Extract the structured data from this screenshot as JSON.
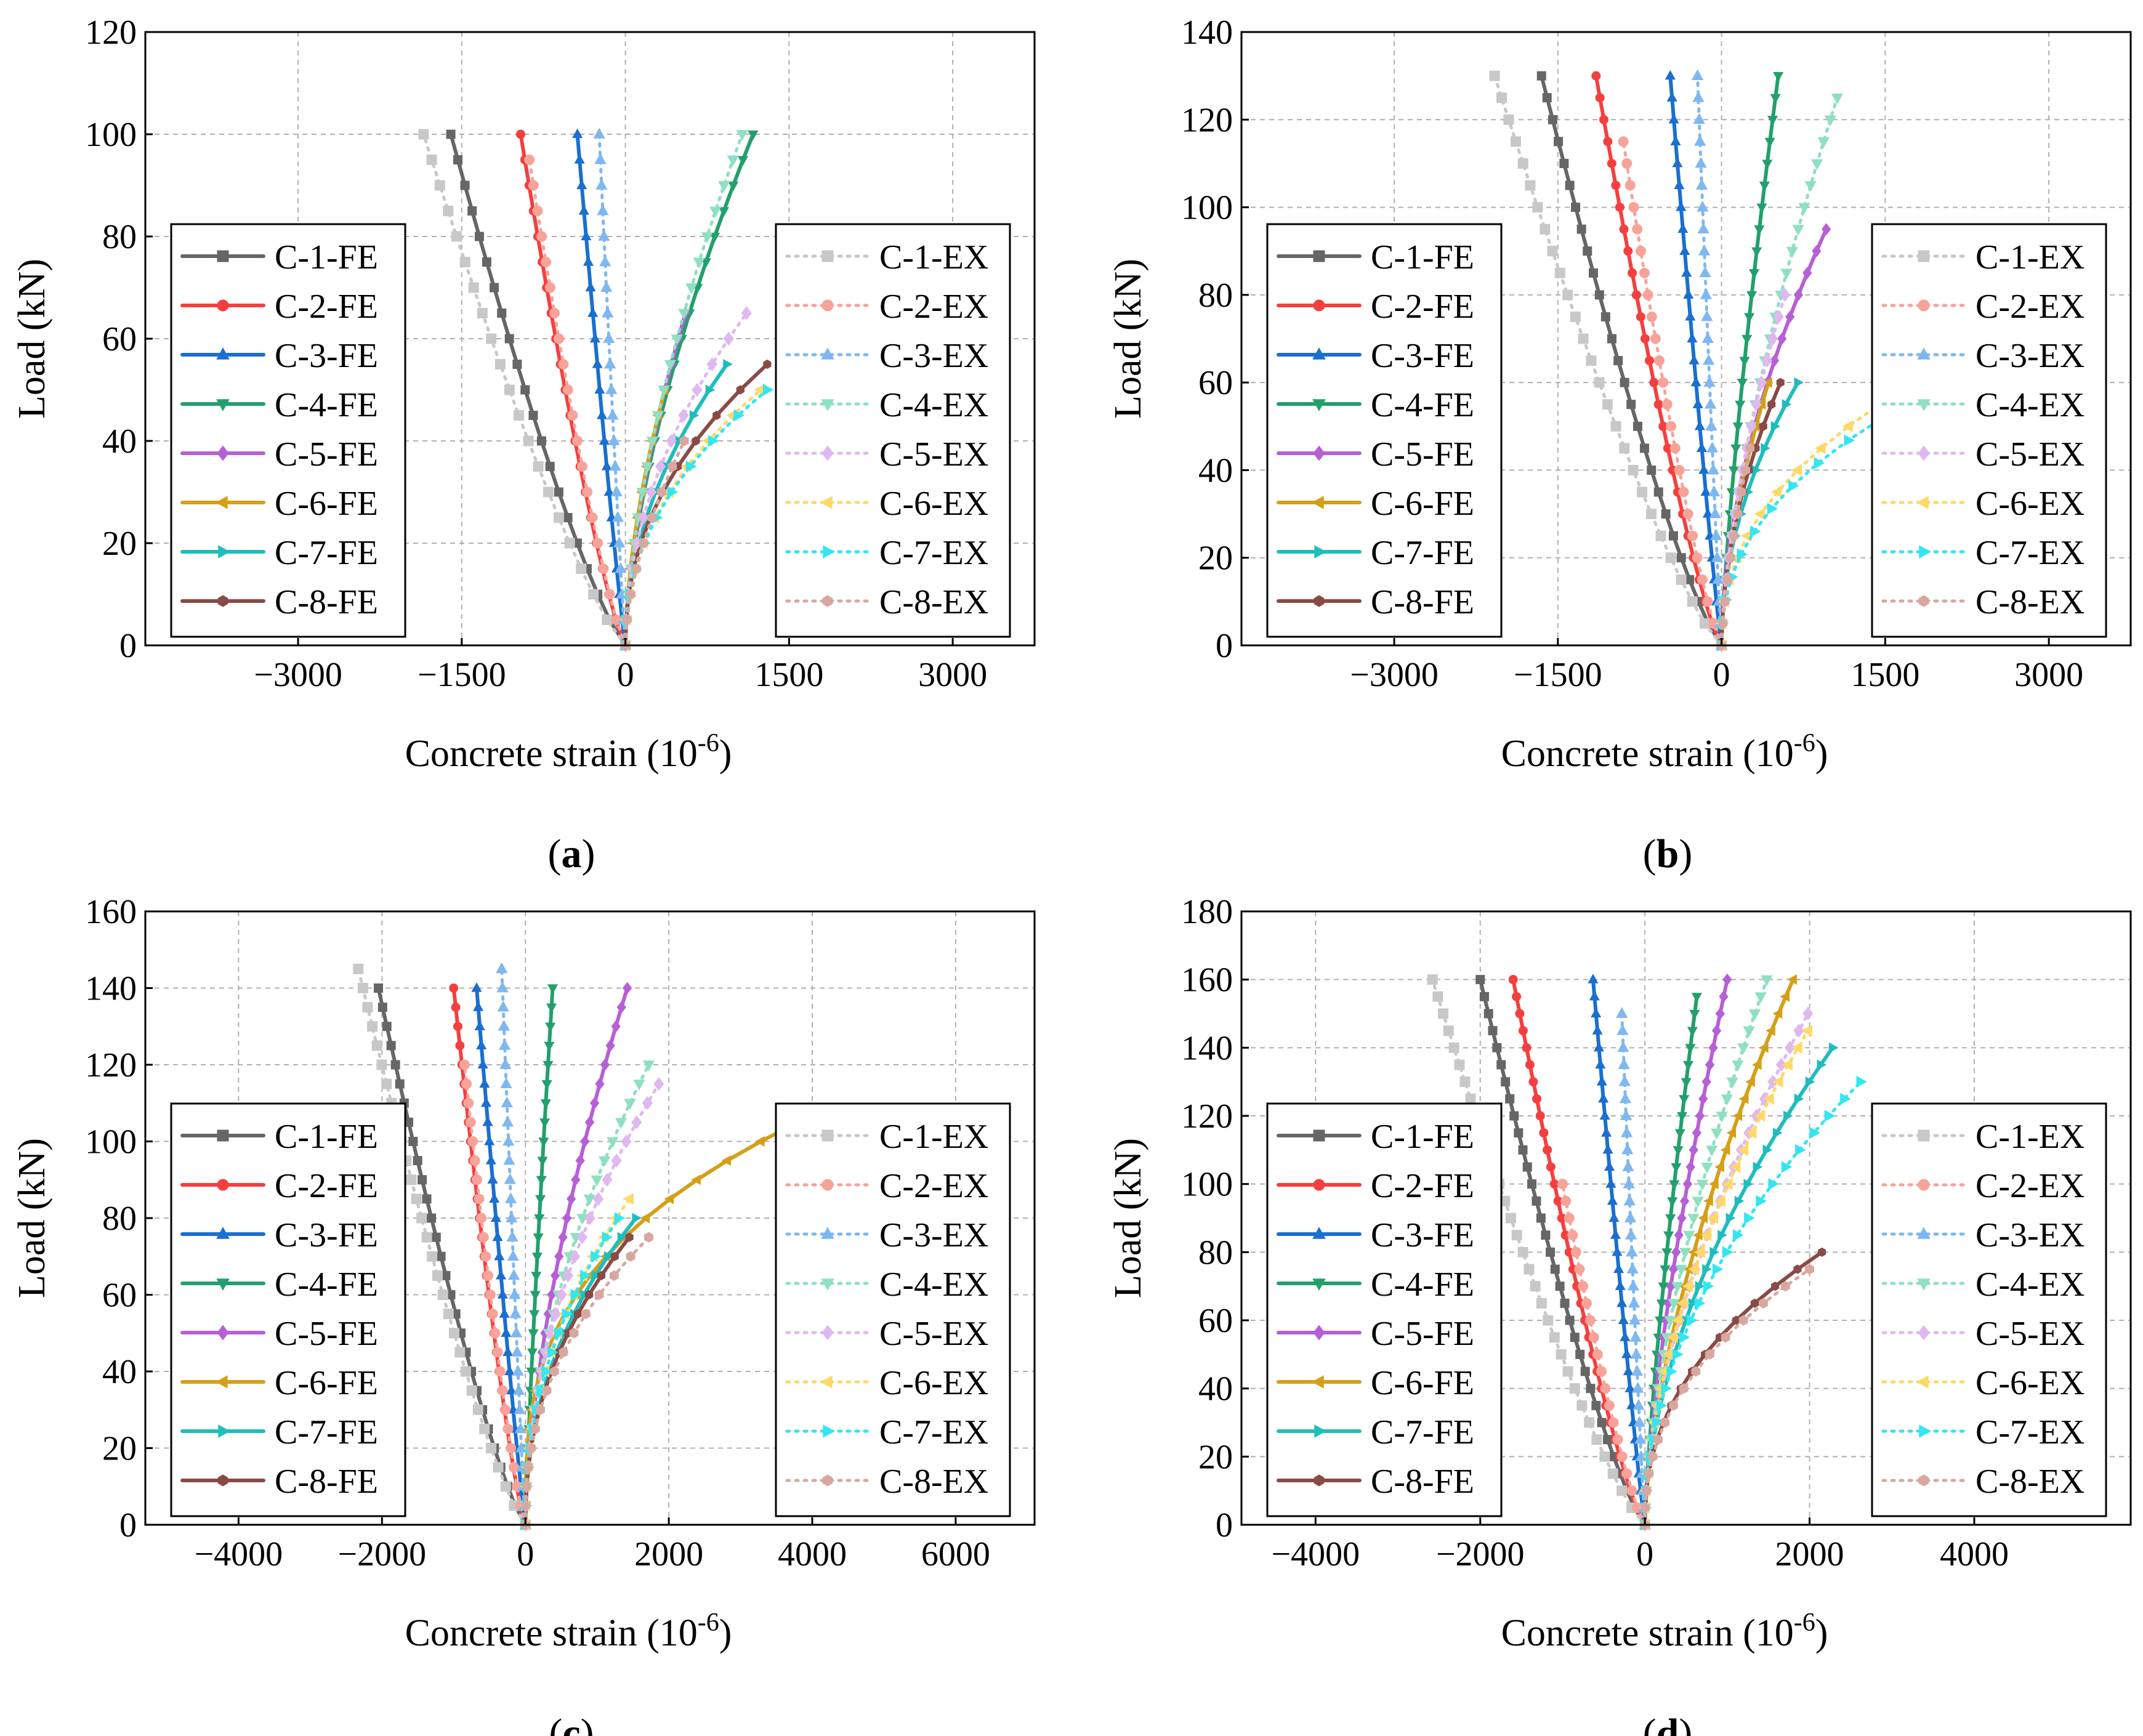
{
  "figure": {
    "series_names_fe": [
      "C-1-FE",
      "C-2-FE",
      "C-3-FE",
      "C-4-FE",
      "C-5-FE",
      "C-6-FE",
      "C-7-FE",
      "C-8-FE"
    ],
    "series_names_ex": [
      "C-1-EX",
      "C-2-EX",
      "C-3-EX",
      "C-4-EX",
      "C-5-EX",
      "C-6-EX",
      "C-7-EX",
      "C-8-EX"
    ],
    "colors_fe": [
      "#666666",
      "#f53f3f",
      "#1a6fd0",
      "#22a06b",
      "#b65fd6",
      "#d4a017",
      "#1fbdbd",
      "#8a4a45"
    ],
    "colors_ex": [
      "#c8c8c8",
      "#f7a39a",
      "#7fb8f0",
      "#8fe0c0",
      "#e0b8f0",
      "#ffd966",
      "#33e6f2",
      "#d8a8a0"
    ],
    "markers": [
      "square",
      "circle",
      "triangle-up",
      "triangle-down",
      "diamond",
      "triangle-left",
      "triangle-right",
      "hexagon"
    ]
  },
  "chart_data": [
    {
      "panel_label": "(a)",
      "type": "line",
      "xlabel": "Concrete strain (10",
      "xlabel_sup": "-6",
      "xlabel_close": ")",
      "ylabel": "Load (kN)",
      "xlim": [
        -4400,
        3750
      ],
      "ylim": [
        0,
        120
      ],
      "xticks": [
        -3000,
        -1500,
        0,
        1500,
        3000
      ],
      "yticks": [
        0,
        20,
        40,
        60,
        80,
        100,
        120
      ],
      "grid": true,
      "legend": "left and right boxes",
      "series": [
        {
          "name": "C-1-FE",
          "peak": [
            -1600,
            100
          ],
          "bend": 0.8
        },
        {
          "name": "C-2-FE",
          "peak": [
            -960,
            100
          ],
          "bend": 0.8
        },
        {
          "name": "C-3-FE",
          "peak": [
            -440,
            100
          ],
          "bend": 0.9
        },
        {
          "name": "C-4-FE",
          "peak": [
            1170,
            100
          ],
          "bend": 1.6
        },
        {
          "name": "C-5-FE",
          "peak": [
            550,
            65
          ],
          "bend": 1.6
        },
        {
          "name": "C-6-FE",
          "peak": [
            360,
            50
          ],
          "bend": 1.7
        },
        {
          "name": "C-7-FE",
          "peak": [
            930,
            55
          ],
          "bend": 2.0
        },
        {
          "name": "C-8-FE",
          "peak": [
            1300,
            55
          ],
          "bend": 2.2
        },
        {
          "name": "C-1-EX",
          "peak": [
            -1850,
            100
          ],
          "bend": 0.8
        },
        {
          "name": "C-2-EX",
          "peak": [
            -880,
            95
          ],
          "bend": 0.8
        },
        {
          "name": "C-3-EX",
          "peak": [
            -240,
            100
          ],
          "bend": 0.9
        },
        {
          "name": "C-4-EX",
          "peak": [
            1070,
            100
          ],
          "bend": 1.6
        },
        {
          "name": "C-5-EX",
          "peak": [
            1110,
            65
          ],
          "bend": 2.0
        },
        {
          "name": "C-6-EX",
          "peak": [
            1240,
            50
          ],
          "bend": 2.2
        },
        {
          "name": "C-7-EX",
          "peak": [
            1300,
            50
          ],
          "bend": 2.2
        },
        {
          "name": "C-8-EX",
          "peak": [
            540,
            40
          ],
          "bend": 1.7
        }
      ]
    },
    {
      "panel_label": "(b)",
      "type": "line",
      "xlabel": "Concrete strain (10",
      "xlabel_sup": "-6",
      "xlabel_close": ")",
      "ylabel": "Load (kN)",
      "xlim": [
        -4400,
        3750
      ],
      "ylim": [
        0,
        140
      ],
      "xticks": [
        -3000,
        -1500,
        0,
        1500,
        3000
      ],
      "yticks": [
        0,
        20,
        40,
        60,
        80,
        100,
        120,
        140
      ],
      "grid": true,
      "legend": "left and right boxes",
      "series": [
        {
          "name": "C-1-FE",
          "peak": [
            -1650,
            130
          ],
          "bend": 0.8
        },
        {
          "name": "C-2-FE",
          "peak": [
            -1150,
            130
          ],
          "bend": 0.8
        },
        {
          "name": "C-3-FE",
          "peak": [
            -470,
            130
          ],
          "bend": 0.9
        },
        {
          "name": "C-4-FE",
          "peak": [
            520,
            130
          ],
          "bend": 1.3
        },
        {
          "name": "C-5-FE",
          "peak": [
            960,
            95
          ],
          "bend": 1.8
        },
        {
          "name": "C-6-FE",
          "peak": [
            430,
            60
          ],
          "bend": 1.7
        },
        {
          "name": "C-7-FE",
          "peak": [
            700,
            60
          ],
          "bend": 2.0
        },
        {
          "name": "C-8-FE",
          "peak": [
            540,
            60
          ],
          "bend": 1.9
        },
        {
          "name": "C-1-EX",
          "peak": [
            -2080,
            130
          ],
          "bend": 0.8
        },
        {
          "name": "C-2-EX",
          "peak": [
            -900,
            115
          ],
          "bend": 0.8
        },
        {
          "name": "C-3-EX",
          "peak": [
            -220,
            130
          ],
          "bend": 0.9
        },
        {
          "name": "C-4-EX",
          "peak": [
            1060,
            125
          ],
          "bend": 1.5
        },
        {
          "name": "C-5-EX",
          "peak": [
            580,
            80
          ],
          "bend": 1.6
        },
        {
          "name": "C-6-EX",
          "peak": [
            1450,
            55
          ],
          "bend": 2.3
        },
        {
          "name": "C-7-EX",
          "peak": [
            1480,
            52
          ],
          "bend": 2.3
        },
        {
          "name": "C-8-EX",
          "peak": [
            260,
            45
          ],
          "bend": 1.4
        }
      ]
    },
    {
      "panel_label": "(c)",
      "type": "line",
      "xlabel": "Concrete strain (10",
      "xlabel_sup": "-6",
      "xlabel_close": ")",
      "ylabel": "Load (kN)",
      "xlim": [
        -5300,
        7100
      ],
      "ylim": [
        0,
        160
      ],
      "xticks": [
        -4000,
        -2000,
        0,
        2000,
        4000,
        6000
      ],
      "yticks": [
        0,
        20,
        40,
        60,
        80,
        100,
        120,
        140,
        160
      ],
      "grid": true,
      "legend": "left and right boxes",
      "series": [
        {
          "name": "C-1-FE",
          "peak": [
            -2050,
            140
          ],
          "bend": 0.8
        },
        {
          "name": "C-2-FE",
          "peak": [
            -1000,
            140
          ],
          "bend": 0.8
        },
        {
          "name": "C-3-FE",
          "peak": [
            -680,
            140
          ],
          "bend": 0.9
        },
        {
          "name": "C-4-FE",
          "peak": [
            380,
            140
          ],
          "bend": 1.2
        },
        {
          "name": "C-5-FE",
          "peak": [
            1420,
            140
          ],
          "bend": 1.6
        },
        {
          "name": "C-6-FE",
          "peak": [
            3800,
            105
          ],
          "bend": 3.0
        },
        {
          "name": "C-7-FE",
          "peak": [
            1540,
            80
          ],
          "bend": 2.2
        },
        {
          "name": "C-8-FE",
          "peak": [
            1450,
            75
          ],
          "bend": 2.2
        },
        {
          "name": "C-1-EX",
          "peak": [
            -2330,
            145
          ],
          "bend": 0.8
        },
        {
          "name": "C-2-EX",
          "peak": [
            -850,
            120
          ],
          "bend": 0.8
        },
        {
          "name": "C-3-EX",
          "peak": [
            -330,
            145
          ],
          "bend": 0.9
        },
        {
          "name": "C-4-EX",
          "peak": [
            1720,
            120
          ],
          "bend": 1.9
        },
        {
          "name": "C-5-EX",
          "peak": [
            1860,
            115
          ],
          "bend": 2.0
        },
        {
          "name": "C-6-EX",
          "peak": [
            1450,
            85
          ],
          "bend": 2.2
        },
        {
          "name": "C-7-EX",
          "peak": [
            1300,
            80
          ],
          "bend": 2.2
        },
        {
          "name": "C-8-EX",
          "peak": [
            1720,
            75
          ],
          "bend": 2.3
        }
      ]
    },
    {
      "panel_label": "(d)",
      "type": "line",
      "xlabel": "Concrete strain (10",
      "xlabel_sup": "-6",
      "xlabel_close": ")",
      "ylabel": "Load (kN)",
      "xlim": [
        -4900,
        5900
      ],
      "ylim": [
        0,
        180
      ],
      "xticks": [
        -4000,
        -2000,
        0,
        2000,
        4000
      ],
      "yticks": [
        0,
        20,
        40,
        60,
        80,
        100,
        120,
        140,
        160,
        180
      ],
      "grid": true,
      "legend": "left and right boxes",
      "series": [
        {
          "name": "C-1-FE",
          "peak": [
            -2000,
            160
          ],
          "bend": 0.8
        },
        {
          "name": "C-2-FE",
          "peak": [
            -1600,
            160
          ],
          "bend": 0.8
        },
        {
          "name": "C-3-FE",
          "peak": [
            -630,
            160
          ],
          "bend": 0.9
        },
        {
          "name": "C-4-FE",
          "peak": [
            630,
            155
          ],
          "bend": 1.3
        },
        {
          "name": "C-5-FE",
          "peak": [
            1000,
            160
          ],
          "bend": 1.4
        },
        {
          "name": "C-6-FE",
          "peak": [
            1800,
            160
          ],
          "bend": 1.6
        },
        {
          "name": "C-7-FE",
          "peak": [
            2280,
            140
          ],
          "bend": 1.8
        },
        {
          "name": "C-8-FE",
          "peak": [
            2150,
            80
          ],
          "bend": 2.3
        },
        {
          "name": "C-1-EX",
          "peak": [
            -2580,
            160
          ],
          "bend": 0.8
        },
        {
          "name": "C-2-EX",
          "peak": [
            -1000,
            100
          ],
          "bend": 0.8
        },
        {
          "name": "C-3-EX",
          "peak": [
            -280,
            150
          ],
          "bend": 0.9
        },
        {
          "name": "C-4-EX",
          "peak": [
            1480,
            160
          ],
          "bend": 1.6
        },
        {
          "name": "C-5-EX",
          "peak": [
            1980,
            150
          ],
          "bend": 1.7
        },
        {
          "name": "C-6-EX",
          "peak": [
            1980,
            145
          ],
          "bend": 1.8
        },
        {
          "name": "C-7-EX",
          "peak": [
            2620,
            130
          ],
          "bend": 2.0
        },
        {
          "name": "C-8-EX",
          "peak": [
            2000,
            75
          ],
          "bend": 2.3
        }
      ]
    }
  ]
}
